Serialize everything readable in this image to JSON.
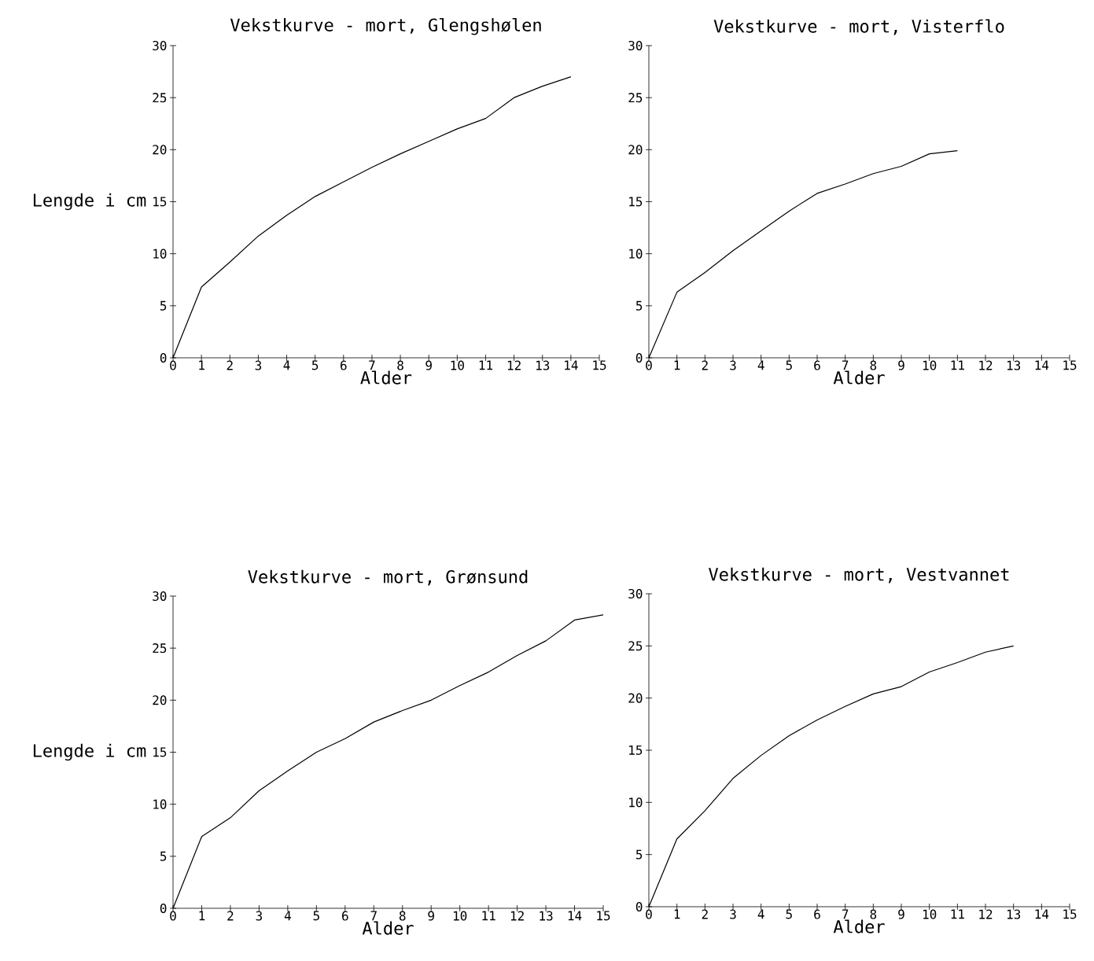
{
  "chart_data": [
    {
      "type": "line",
      "title": "Vekstkurve - mort, Glengshølen",
      "xlabel": "Alder",
      "ylabel": "Lengde i cm",
      "color": "#000000",
      "x": [
        0,
        1,
        2,
        3,
        4,
        5,
        6,
        7,
        8,
        9,
        10,
        11,
        12,
        13,
        14
      ],
      "values": [
        0,
        6.8,
        9.2,
        11.7,
        13.7,
        15.5,
        16.9,
        18.3,
        19.6,
        20.8,
        22.0,
        23.0,
        25.0,
        26.1,
        27.0
      ],
      "xlim": [
        0,
        15
      ],
      "ylim": [
        0,
        30
      ],
      "xticks": [
        0,
        1,
        2,
        3,
        4,
        5,
        6,
        7,
        8,
        9,
        10,
        11,
        12,
        13,
        14,
        15
      ],
      "yticks": [
        0,
        5,
        10,
        15,
        20,
        25,
        30
      ]
    },
    {
      "type": "line",
      "title": "Vekstkurve - mort, Visterflo",
      "xlabel": "Alder",
      "color": "#000000",
      "x": [
        0,
        1,
        2,
        3,
        4,
        5,
        6,
        7,
        8,
        9,
        10,
        11
      ],
      "values": [
        0,
        6.3,
        8.2,
        10.3,
        12.2,
        14.1,
        15.8,
        16.7,
        17.7,
        18.4,
        19.6,
        19.9
      ],
      "xlim": [
        0,
        15
      ],
      "ylim": [
        0,
        30
      ],
      "xticks": [
        0,
        1,
        2,
        3,
        4,
        5,
        6,
        7,
        8,
        9,
        10,
        11,
        12,
        13,
        14,
        15
      ],
      "yticks": [
        0,
        5,
        10,
        15,
        20,
        25,
        30
      ]
    },
    {
      "type": "line",
      "title": "Vekstkurve - mort, Grønsund",
      "xlabel": "Alder",
      "ylabel": "Lengde i cm",
      "color": "#000000",
      "x": [
        0,
        1,
        2,
        3,
        4,
        5,
        6,
        7,
        8,
        9,
        10,
        11,
        12,
        13,
        14,
        15
      ],
      "values": [
        0,
        6.9,
        8.7,
        11.3,
        13.2,
        15.0,
        16.3,
        17.9,
        19.0,
        20.0,
        21.4,
        22.7,
        24.3,
        25.7,
        27.7,
        28.2
      ],
      "xlim": [
        0,
        15
      ],
      "ylim": [
        0,
        30
      ],
      "xticks": [
        0,
        1,
        2,
        3,
        4,
        5,
        6,
        7,
        8,
        9,
        10,
        11,
        12,
        13,
        14,
        15
      ],
      "yticks": [
        0,
        5,
        10,
        15,
        20,
        25,
        30
      ]
    },
    {
      "type": "line",
      "title": "Vekstkurve - mort, Vestvannet",
      "xlabel": "Alder",
      "color": "#000000",
      "x": [
        0,
        1,
        2,
        3,
        4,
        5,
        6,
        7,
        8,
        9,
        10,
        11,
        12,
        13
      ],
      "values": [
        0,
        6.5,
        9.2,
        12.3,
        14.5,
        16.4,
        17.9,
        19.2,
        20.4,
        21.1,
        22.5,
        23.4,
        24.4,
        25.0
      ],
      "xlim": [
        0,
        15
      ],
      "ylim": [
        0,
        30
      ],
      "xticks": [
        0,
        1,
        2,
        3,
        4,
        5,
        6,
        7,
        8,
        9,
        10,
        11,
        12,
        13,
        14,
        15
      ],
      "yticks": [
        0,
        5,
        10,
        15,
        20,
        25,
        30
      ]
    }
  ]
}
